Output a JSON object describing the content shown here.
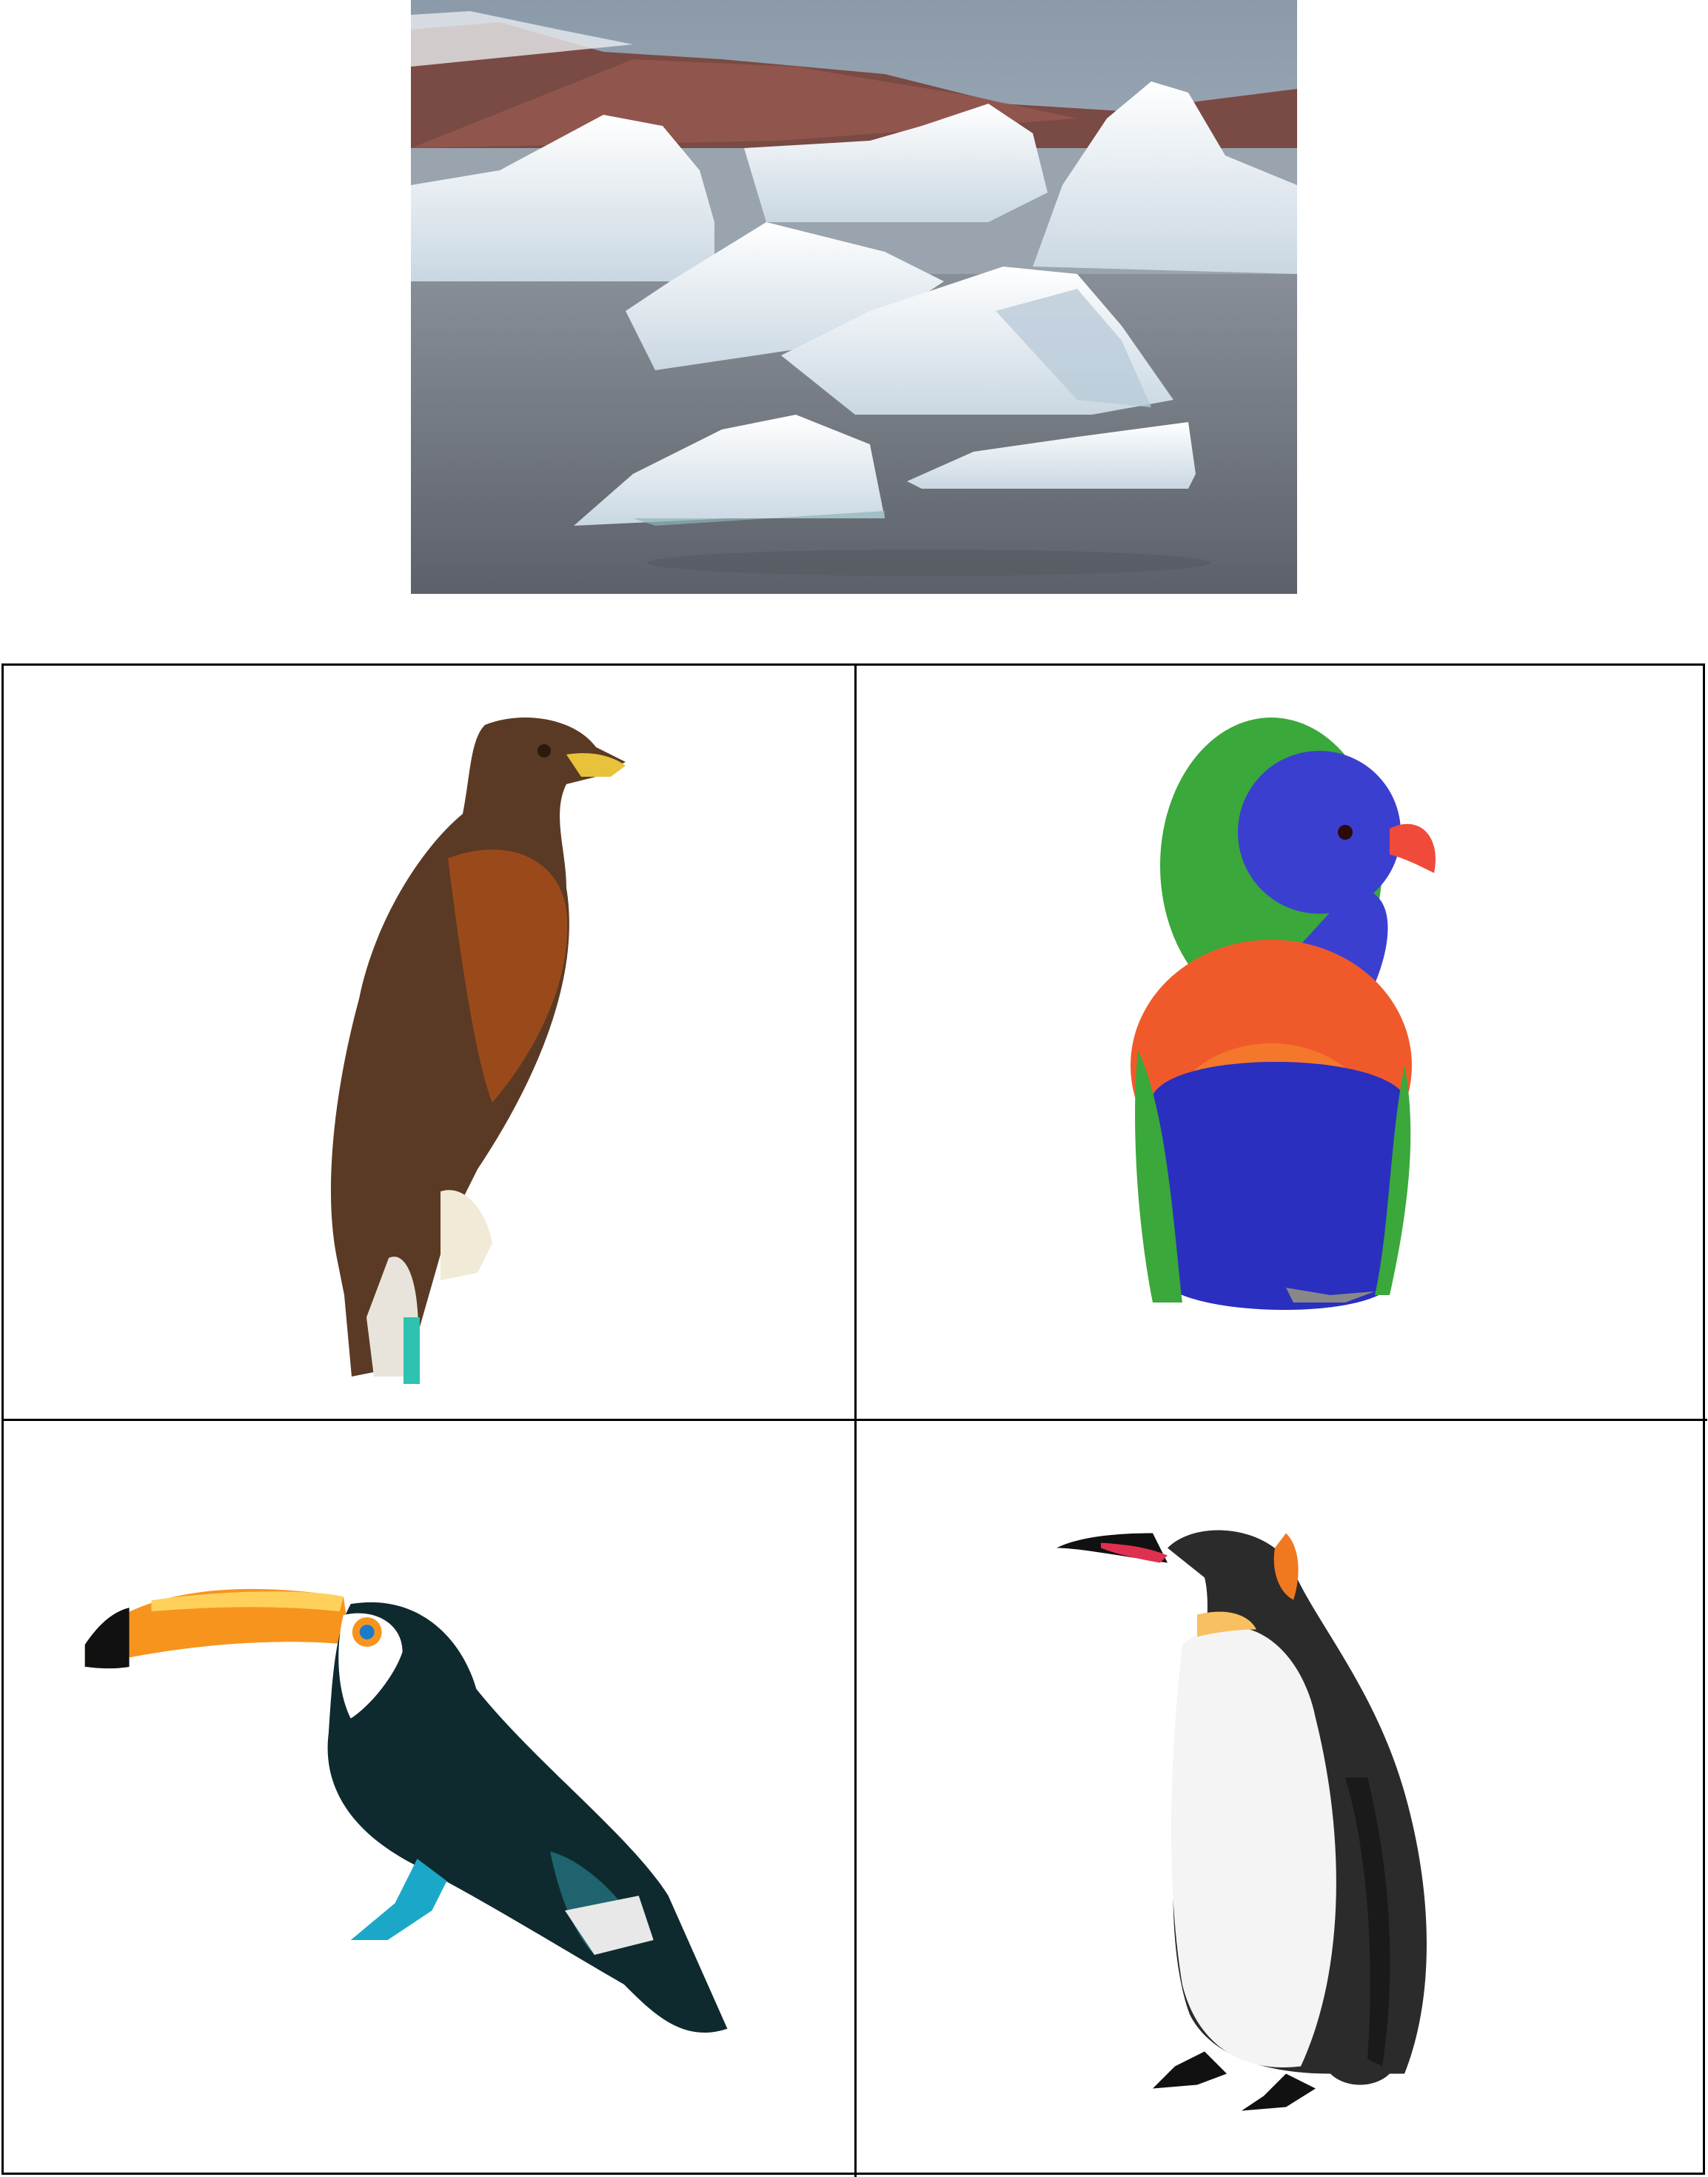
{
  "scene": {
    "subject": "icebergs-photo"
  },
  "options": [
    {
      "subject": "hawk"
    },
    {
      "subject": "lorikeet"
    },
    {
      "subject": "toucan"
    },
    {
      "subject": "penguin"
    }
  ],
  "colors": {
    "water": "#6f747c",
    "ice": "#eef3f7",
    "ice_shadow": "#b9cbd8",
    "cliff": "#7a4a44",
    "sky": "#a9b6c4",
    "hawk_body": "#5a3a24",
    "hawk_rust": "#9a4a1a",
    "lori_head": "#3b3fd0",
    "lori_chest": "#f05a2a",
    "lori_belly": "#2a2fc0",
    "lori_wing": "#3aa83a",
    "toucan_beak": "#f7941d",
    "toucan_body": "#0f2a2e",
    "penguin_back": "#2b2b2b",
    "penguin_belly": "#f4f4f4",
    "penguin_orange": "#f07820"
  }
}
